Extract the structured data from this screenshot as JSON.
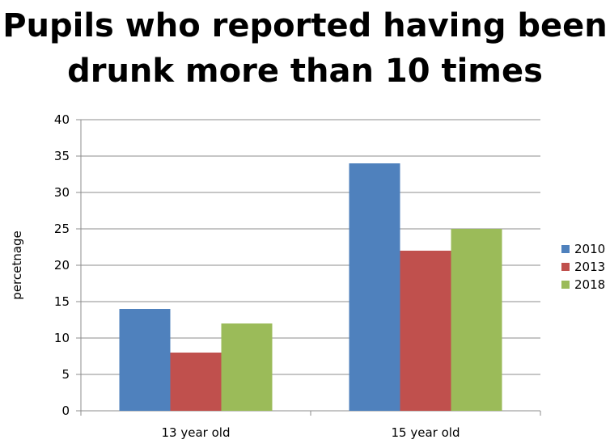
{
  "chart_data": {
    "type": "bar",
    "title": "Pupils who reported having been drunk more than 10 times",
    "xlabel": "",
    "ylabel": "percetnage",
    "categories": [
      "13 year old",
      "15 year old"
    ],
    "series": [
      {
        "name": "2010",
        "color": "#4f81bd",
        "values": [
          14,
          34
        ]
      },
      {
        "name": "2013",
        "color": "#c0504d",
        "values": [
          8,
          22
        ]
      },
      {
        "name": "2018",
        "color": "#9bbb59",
        "values": [
          12,
          25
        ]
      }
    ],
    "ylim": [
      0,
      40
    ],
    "yticks": [
      0,
      5,
      10,
      15,
      20,
      25,
      30,
      35,
      40
    ],
    "grid": true,
    "legend_position": "right"
  }
}
